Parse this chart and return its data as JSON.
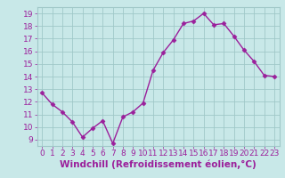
{
  "x": [
    0,
    1,
    2,
    3,
    4,
    5,
    6,
    7,
    8,
    9,
    10,
    11,
    12,
    13,
    14,
    15,
    16,
    17,
    18,
    19,
    20,
    21,
    22,
    23
  ],
  "y": [
    12.7,
    11.8,
    11.2,
    10.4,
    9.2,
    9.9,
    10.5,
    8.7,
    10.8,
    11.2,
    11.9,
    14.5,
    15.9,
    16.9,
    18.2,
    18.4,
    19.0,
    18.1,
    18.2,
    17.2,
    16.1,
    15.2,
    14.1,
    14.0
  ],
  "line_color": "#9B1F9B",
  "marker_color": "#9B1F9B",
  "bg_color": "#C8E8E8",
  "grid_color": "#A0C8C8",
  "xlabel": "Windchill (Refroidissement éolien,°C)",
  "xlabel_color": "#9B1F9B",
  "ylim": [
    8.5,
    19.5
  ],
  "yticks": [
    9,
    10,
    11,
    12,
    13,
    14,
    15,
    16,
    17,
    18,
    19
  ],
  "xticks": [
    0,
    1,
    2,
    3,
    4,
    5,
    6,
    7,
    8,
    9,
    10,
    11,
    12,
    13,
    14,
    15,
    16,
    17,
    18,
    19,
    20,
    21,
    22,
    23
  ],
  "tick_color": "#9B1F9B",
  "tick_fontsize": 6.5,
  "xlabel_fontsize": 7.5,
  "marker_size": 2.5,
  "line_width": 1.0
}
